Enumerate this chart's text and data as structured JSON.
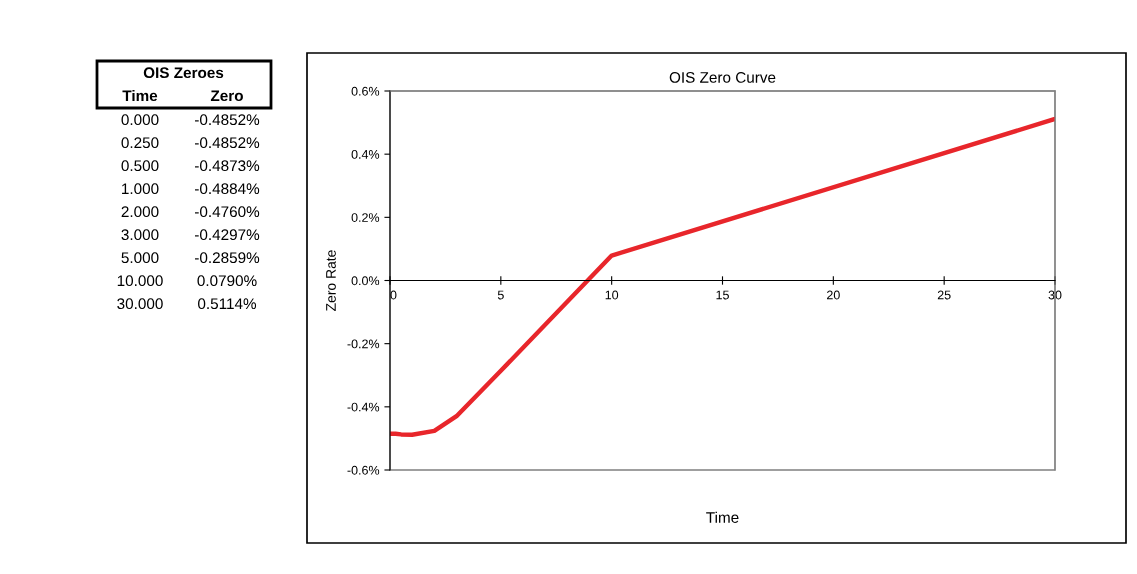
{
  "chart_data": [
    {
      "type": "other",
      "annotations": [
        "OIS Zeroes",
        "Time",
        "Zero",
        "0.000",
        "-0.4852%",
        "0.250",
        "-0.4852%",
        "0.500",
        "-0.4873%",
        "1.000",
        "-0.4884%",
        "2.000",
        "-0.4760%",
        "3.000",
        "-0.4297%",
        "5.000",
        "-0.2859%",
        "10.000",
        "0.0790%",
        "30.000",
        "0.5114%"
      ]
    },
    {
      "type": "line",
      "title": "OIS Zero Curve",
      "xlabel": "Time",
      "ylabel": "Zero Rate",
      "x": [
        0,
        0.25,
        0.5,
        1,
        2,
        3,
        5,
        10,
        30
      ],
      "series": [
        {
          "color": "#e8262b",
          "values": [
            -0.4852,
            -0.4852,
            -0.4873,
            -0.4884,
            -0.476,
            -0.4297,
            -0.2859,
            0.079,
            0.5114
          ]
        }
      ],
      "xlim": [
        0,
        30
      ],
      "xticks": [
        0,
        5,
        10,
        15,
        20,
        25,
        30
      ],
      "ylim": [
        -0.6,
        0.6
      ],
      "yticks": [
        {
          "value": -0.6,
          "label": "-0.6%"
        },
        {
          "value": -0.4,
          "label": "-0.4%"
        },
        {
          "value": -0.2,
          "label": "-0.2%"
        },
        {
          "value": 0,
          "label": "0.0%"
        },
        {
          "value": 0.2,
          "label": "0.2%"
        },
        {
          "value": 0.4,
          "label": "0.4%"
        },
        {
          "value": 0.6,
          "label": "0.6%"
        }
      ],
      "grid": false,
      "marker": "none",
      "line_style": "solid"
    }
  ]
}
